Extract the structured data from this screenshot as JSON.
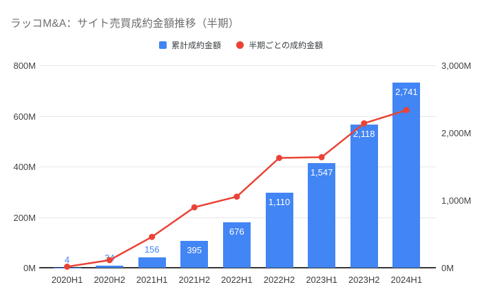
{
  "header": {
    "title": "ラッコM&A：サイト売買成約金額推移（半期）"
  },
  "legend": [
    {
      "label": "累計成約金額",
      "marker": "square",
      "color": "#4285F4"
    },
    {
      "label": "半期ごとの成約金額",
      "marker": "circle",
      "color": "#EA4335"
    }
  ],
  "colors": {
    "bar": "#4285F4",
    "line": "#EA4335",
    "bar_label_inside": "#ffffff",
    "bar_label_outside": "#4285F4",
    "grid": "#e6e6e6",
    "axis_baseline": "#333333",
    "axis_text": "#444444",
    "title_text": "#6e6e6e"
  },
  "chart_data": {
    "type": "combo",
    "title": "ラッコM&A：サイト売買成約金額推移（半期）",
    "categories": [
      "2020H1",
      "2020H2",
      "2021H1",
      "2021H2",
      "2022H1",
      "2022H2",
      "2023H1",
      "2023H2",
      "2024H1"
    ],
    "series": [
      {
        "name": "累計成約金額",
        "type": "bar",
        "axis": "right",
        "color": "#4285F4",
        "values": [
          4,
          34,
          156,
          395,
          676,
          1110,
          1547,
          2118,
          2741
        ],
        "labels": [
          "4",
          "34",
          "156",
          "395",
          "676",
          "1,110",
          "1,547",
          "2,118",
          "2,741"
        ]
      },
      {
        "name": "半期ごとの成約金額",
        "type": "line",
        "axis": "left",
        "color": "#EA4335",
        "values": [
          4,
          30,
          122,
          239,
          281,
          434,
          437,
          571,
          623
        ]
      }
    ],
    "axes": {
      "left": {
        "range": [
          0,
          800
        ],
        "ticks": [
          {
            "value": 0,
            "label": "0M"
          },
          {
            "value": 200,
            "label": "200M"
          },
          {
            "value": 400,
            "label": "400M"
          },
          {
            "value": 600,
            "label": "600M"
          },
          {
            "value": 800,
            "label": "800M"
          }
        ]
      },
      "right": {
        "range": [
          0,
          3000
        ],
        "ticks": [
          {
            "value": 0,
            "label": "0M"
          },
          {
            "value": 1000,
            "label": "1,000M"
          },
          {
            "value": 2000,
            "label": "2,000M"
          },
          {
            "value": 3000,
            "label": "3,000M"
          }
        ]
      }
    },
    "grid": {
      "horizontal": true,
      "on_axis": "left"
    },
    "legend_position": "top"
  }
}
